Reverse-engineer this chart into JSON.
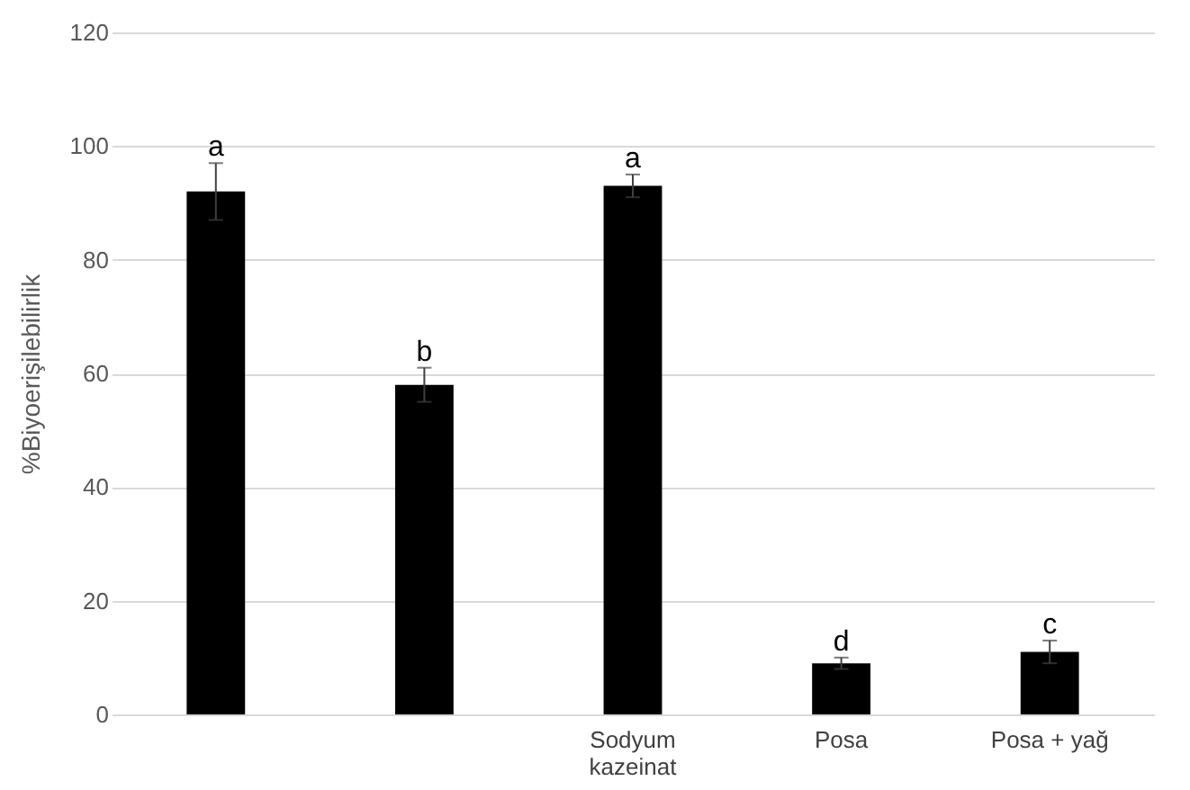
{
  "chart_data": {
    "type": "bar",
    "ylabel": "%Biyoerişilebilirlik",
    "categories": [
      null,
      null,
      "Sodyum kazeinat",
      "Posa",
      "Posa + yağ"
    ],
    "values": [
      92,
      58,
      93,
      9,
      11
    ],
    "errors": [
      5,
      3,
      2,
      1,
      2
    ],
    "value_labels": [
      "a",
      "b",
      "a",
      "d",
      "c"
    ],
    "color": "#000000",
    "ylim": [
      0,
      120
    ],
    "yticks": [
      0,
      20,
      40,
      60,
      80,
      100,
      120
    ],
    "grid": "y"
  }
}
